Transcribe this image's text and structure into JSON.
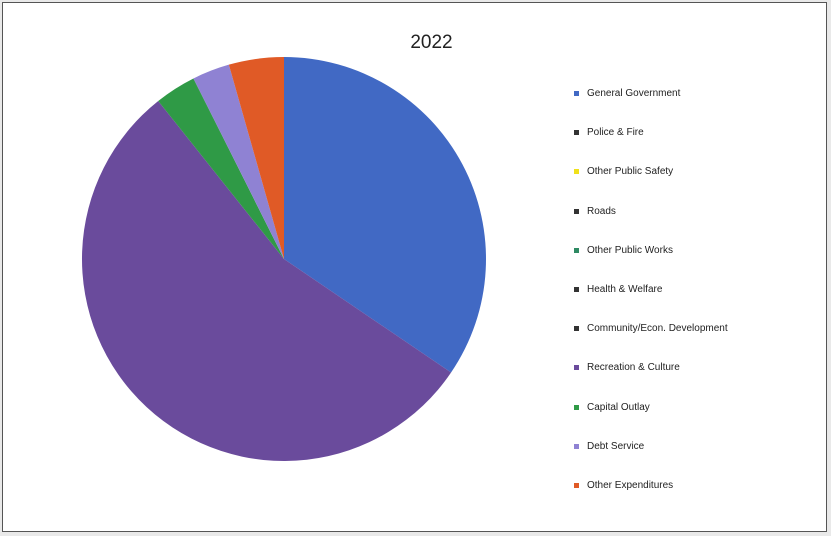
{
  "chart_data": {
    "type": "pie",
    "title": "2022",
    "slices": [
      {
        "label": "General Government",
        "value": 34.5,
        "color": "#4169c4"
      },
      {
        "label": "Police & Fire",
        "value": 0,
        "color": "#333333"
      },
      {
        "label": "Other Public Safety",
        "value": 0,
        "color": "#f0e11a"
      },
      {
        "label": "Roads",
        "value": 0,
        "color": "#333333"
      },
      {
        "label": "Other Public Works",
        "value": 0,
        "color": "#2e8a63"
      },
      {
        "label": "Health & Welfare",
        "value": 0,
        "color": "#333333"
      },
      {
        "label": "Community/Econ. Development",
        "value": 0,
        "color": "#333333"
      },
      {
        "label": "Recreation & Culture",
        "value": 54.8,
        "color": "#6a4b9c"
      },
      {
        "label": "Capital Outlay",
        "value": 3.3,
        "color": "#2f9a46"
      },
      {
        "label": "Debt Service",
        "value": 3.0,
        "color": "#8f82d3"
      },
      {
        "label": "Other Expenditures",
        "value": 4.4,
        "color": "#e05a26"
      }
    ],
    "legend_position": "right"
  }
}
